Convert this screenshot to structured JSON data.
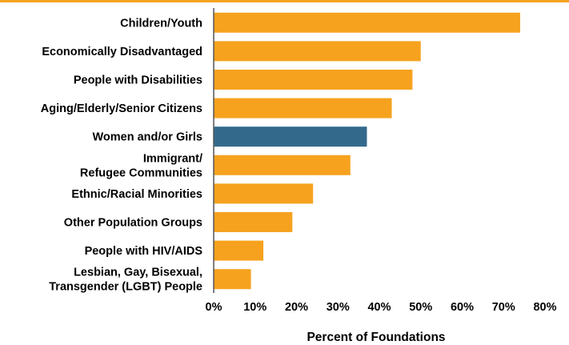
{
  "chart_data": {
    "type": "bar",
    "orientation": "horizontal",
    "categories": [
      [
        "Children/Youth"
      ],
      [
        "Economically Disadvantaged"
      ],
      [
        "People with Disabilities"
      ],
      [
        "Aging/Elderly/Senior Citizens"
      ],
      [
        "Women and/or Girls"
      ],
      [
        "Immigrant/",
        "Refugee Communities"
      ],
      [
        "Ethnic/Racial Minorities"
      ],
      [
        "Other Population Groups"
      ],
      [
        "People with HIV/AIDS"
      ],
      [
        "Lesbian, Gay, Bisexual,",
        "Transgender (LGBT) People"
      ]
    ],
    "values": [
      74,
      50,
      48,
      43,
      37,
      33,
      24,
      19,
      12,
      9
    ],
    "highlight_index": 4,
    "colors": {
      "bar": "#f6a21f",
      "highlight": "#336a8c",
      "axis": "#555555",
      "rule": "#f6a21f"
    },
    "xlim": [
      0,
      80
    ],
    "xticks": [
      "0%",
      "10%",
      "20%",
      "30%",
      "40%",
      "50%",
      "60%",
      "70%",
      "80%"
    ],
    "xlabel": "Percent of Foundations",
    "ylabel": "",
    "title": "",
    "grid": false,
    "legend": "none"
  }
}
